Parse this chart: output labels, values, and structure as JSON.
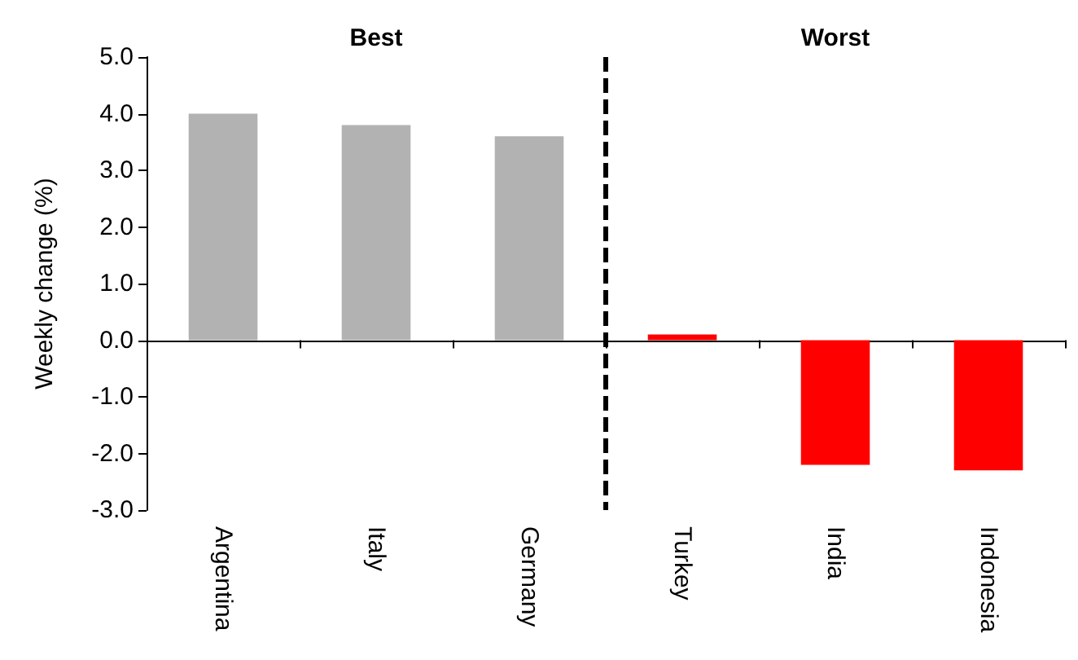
{
  "chart_data": {
    "type": "bar",
    "categories": [
      "Argentina",
      "Italy",
      "Germany",
      "Turkey",
      "India",
      "Indonesia"
    ],
    "values": [
      4.0,
      3.8,
      3.6,
      0.1,
      -2.2,
      -2.3
    ],
    "colors": [
      "#b2b2b2",
      "#b2b2b2",
      "#b2b2b2",
      "#ff0000",
      "#ff0000",
      "#ff0000"
    ],
    "ylabel": "Weekly change (%)",
    "ylim": [
      -3,
      5
    ],
    "yticks": [
      {
        "value": -3,
        "label": "-3.0"
      },
      {
        "value": -2,
        "label": "-2.0"
      },
      {
        "value": -1,
        "label": "-1.0"
      },
      {
        "value": 0,
        "label": "0.0"
      },
      {
        "value": 1,
        "label": "1.0"
      },
      {
        "value": 2,
        "label": "2.0"
      },
      {
        "value": 3,
        "label": "3.0"
      },
      {
        "value": 4,
        "label": "4.0"
      },
      {
        "value": 5,
        "label": "5.0"
      }
    ],
    "annotations": [
      "Best",
      "Worst"
    ]
  }
}
